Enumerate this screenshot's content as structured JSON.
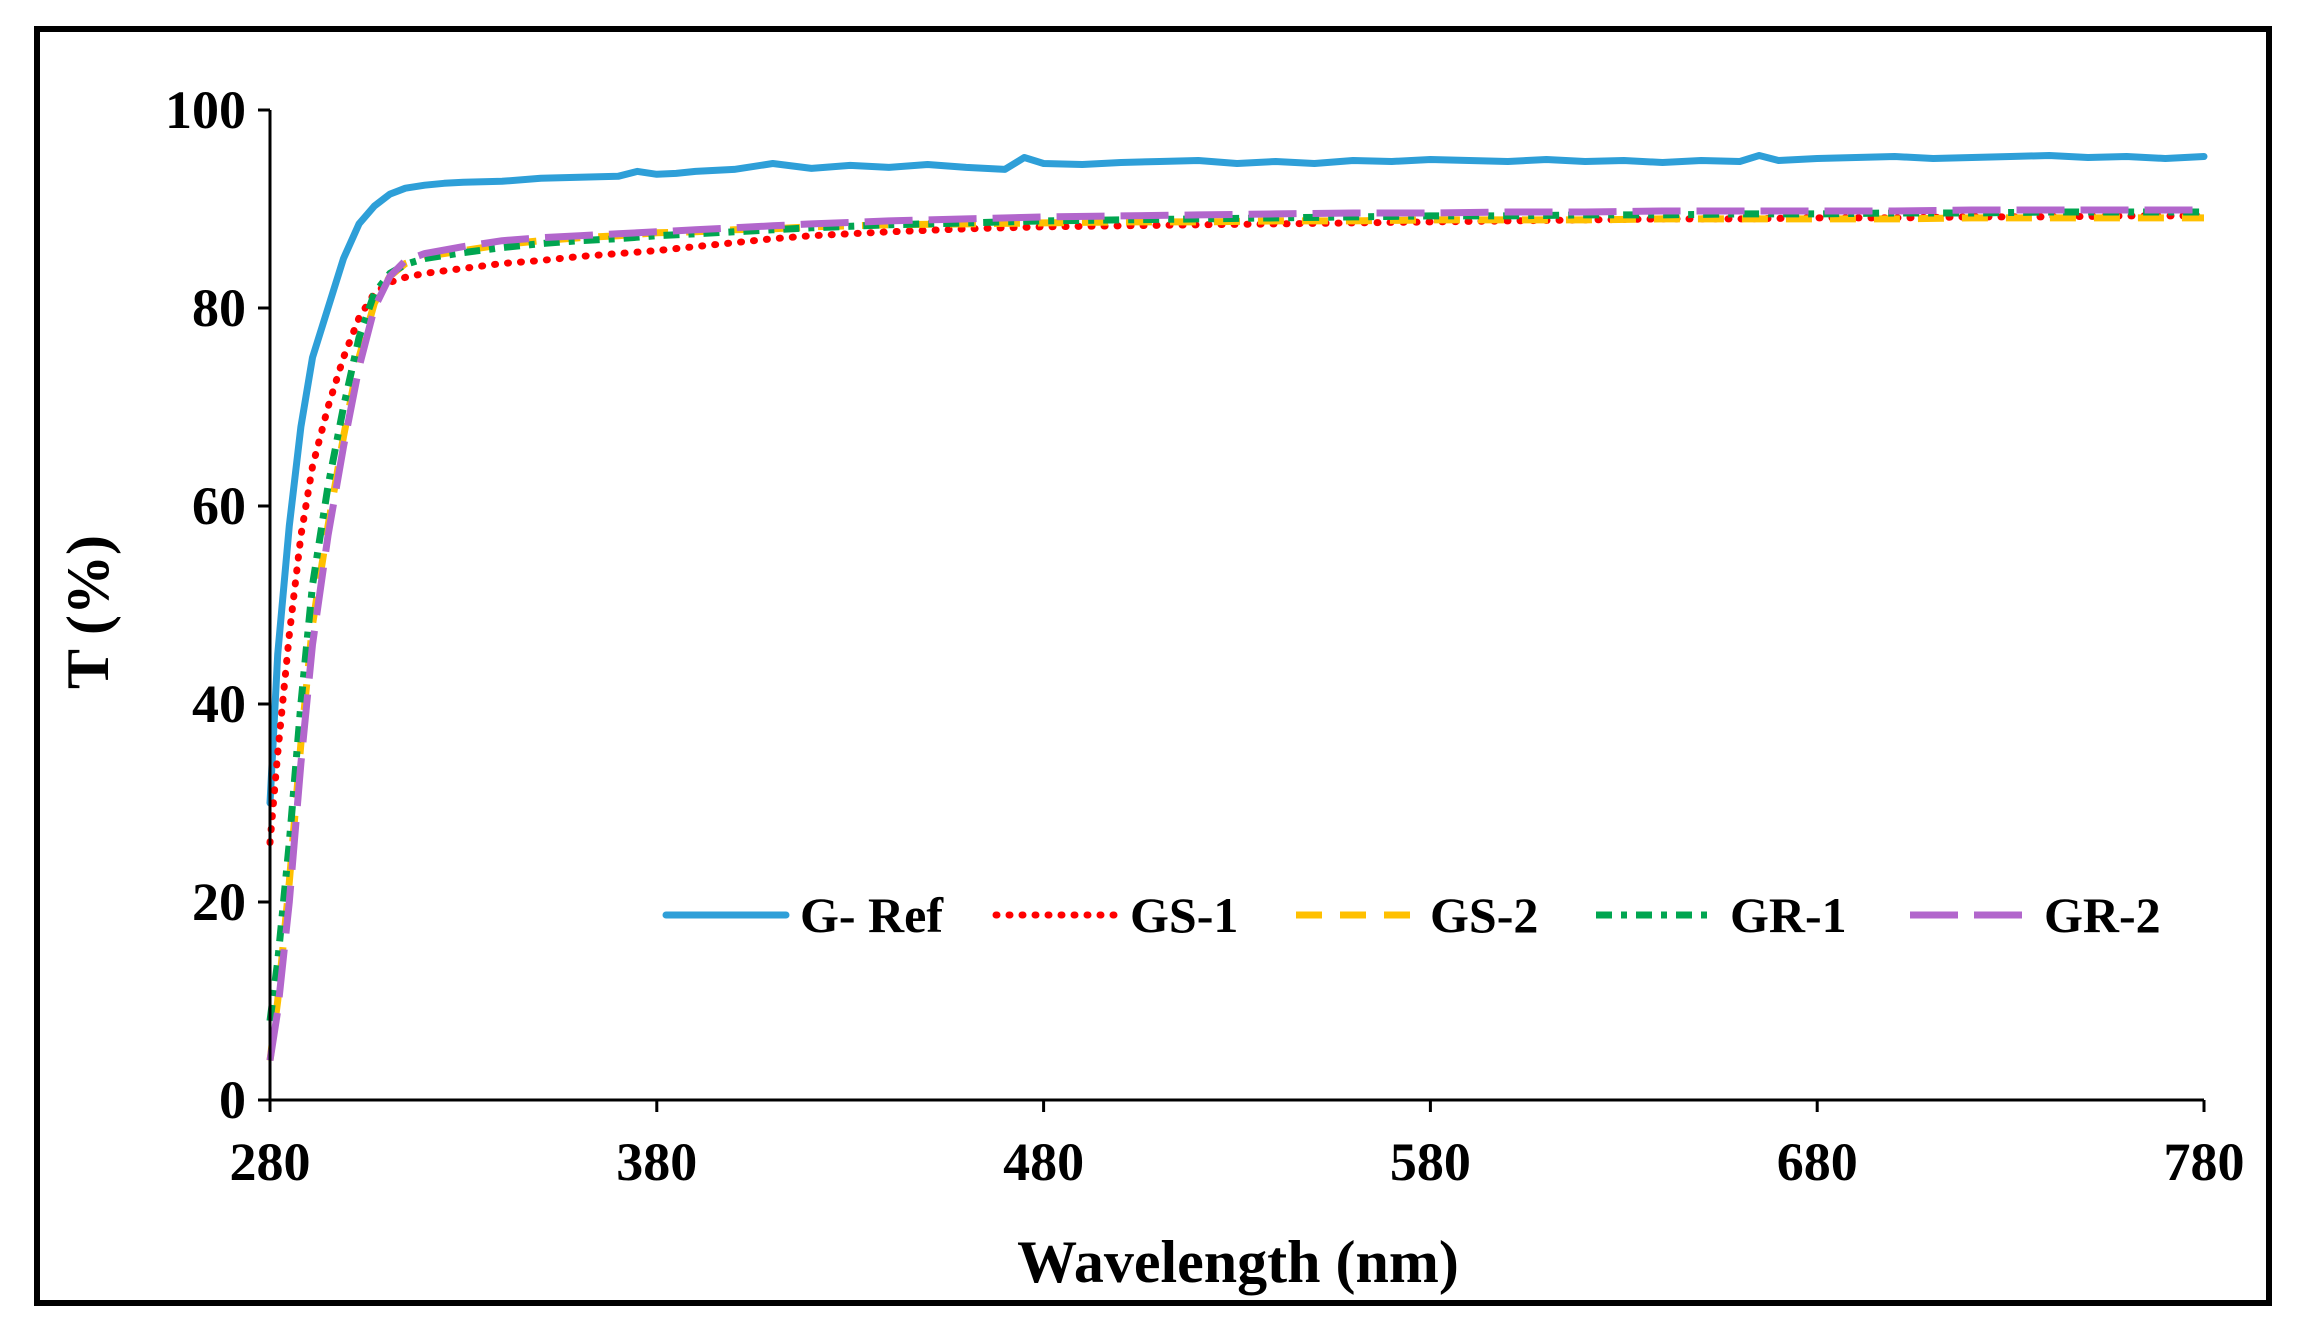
{
  "chart_data": {
    "type": "line",
    "title": "",
    "xlabel": "Wavelength (nm)",
    "ylabel": "T (%)",
    "xlim": [
      280,
      780
    ],
    "ylim": [
      0,
      100
    ],
    "xticks": [
      280,
      380,
      480,
      580,
      680,
      780
    ],
    "yticks": [
      0,
      20,
      40,
      60,
      80,
      100
    ],
    "grid": false,
    "legend_position": "bottom-right",
    "series": [
      {
        "name": "G- Ref",
        "color": "#2E9FD8",
        "style": "solid",
        "x": [
          280,
          282,
          285,
          288,
          291,
          295,
          299,
          303,
          307,
          311,
          315,
          320,
          325,
          330,
          340,
          350,
          360,
          370,
          375,
          380,
          385,
          390,
          400,
          410,
          420,
          430,
          440,
          450,
          460,
          470,
          475,
          480,
          490,
          500,
          510,
          520,
          530,
          540,
          550,
          560,
          570,
          580,
          590,
          600,
          610,
          620,
          630,
          640,
          650,
          660,
          665,
          670,
          680,
          690,
          700,
          710,
          720,
          730,
          740,
          750,
          760,
          770,
          780
        ],
        "values": [
          30,
          45,
          58,
          68,
          75,
          80,
          85,
          88.5,
          90.3,
          91.5,
          92.1,
          92.4,
          92.6,
          92.7,
          92.8,
          93.1,
          93.2,
          93.3,
          93.8,
          93.5,
          93.6,
          93.8,
          94.0,
          94.6,
          94.1,
          94.4,
          94.2,
          94.5,
          94.2,
          94.0,
          95.2,
          94.6,
          94.5,
          94.7,
          94.8,
          94.9,
          94.6,
          94.8,
          94.6,
          94.9,
          94.8,
          95.0,
          94.9,
          94.8,
          95.0,
          94.8,
          94.9,
          94.7,
          94.9,
          94.8,
          95.4,
          94.9,
          95.1,
          95.2,
          95.3,
          95.1,
          95.2,
          95.3,
          95.4,
          95.2,
          95.3,
          95.1,
          95.3
        ]
      },
      {
        "name": "GS-1",
        "color": "#FF0000",
        "style": "dotted",
        "x": [
          280,
          282,
          285,
          288,
          291,
          295,
          299,
          303,
          307,
          311,
          315,
          320,
          330,
          340,
          350,
          360,
          370,
          380,
          390,
          400,
          410,
          420,
          440,
          460,
          480,
          500,
          520,
          540,
          560,
          580,
          600,
          620,
          640,
          660,
          680,
          700,
          720,
          740,
          760,
          780
        ],
        "values": [
          26,
          35,
          47,
          57,
          64,
          70,
          75,
          79,
          81.5,
          82.6,
          83.1,
          83.5,
          84.0,
          84.5,
          84.8,
          85.2,
          85.5,
          85.8,
          86.2,
          86.6,
          87.0,
          87.3,
          87.7,
          88.0,
          88.2,
          88.3,
          88.4,
          88.5,
          88.6,
          88.7,
          88.8,
          88.9,
          89.0,
          89.0,
          89.1,
          89.1,
          89.2,
          89.2,
          89.3,
          89.3
        ]
      },
      {
        "name": "GS-2",
        "color": "#FFC000",
        "style": "dashed",
        "x": [
          280,
          282,
          285,
          288,
          291,
          295,
          299,
          303,
          307,
          311,
          315,
          320,
          330,
          340,
          350,
          360,
          370,
          380,
          390,
          400,
          410,
          420,
          440,
          460,
          480,
          500,
          520,
          540,
          560,
          580,
          600,
          620,
          640,
          660,
          680,
          700,
          720,
          740,
          760,
          780
        ],
        "values": [
          4,
          10,
          22,
          36,
          48,
          58,
          67,
          75,
          80.5,
          83.2,
          84.5,
          85.2,
          85.8,
          86.4,
          86.8,
          87.1,
          87.3,
          87.6,
          87.7,
          87.9,
          88.0,
          88.2,
          88.4,
          88.5,
          88.6,
          88.7,
          88.7,
          88.8,
          88.8,
          88.9,
          88.9,
          88.9,
          89.0,
          89.0,
          89.0,
          89.0,
          89.1,
          89.1,
          89.1,
          89.1
        ]
      },
      {
        "name": "GR-1",
        "color": "#00A550",
        "style": "dash-dot",
        "x": [
          280,
          282,
          285,
          288,
          291,
          295,
          299,
          303,
          307,
          311,
          315,
          320,
          330,
          340,
          350,
          360,
          370,
          380,
          390,
          400,
          410,
          420,
          440,
          460,
          480,
          500,
          520,
          540,
          560,
          580,
          600,
          620,
          640,
          660,
          680,
          700,
          720,
          740,
          760,
          780
        ],
        "values": [
          8,
          14,
          26,
          40,
          52,
          62,
          70,
          77,
          81.5,
          83.5,
          84.4,
          85.0,
          85.6,
          86.1,
          86.5,
          86.8,
          87.0,
          87.3,
          87.5,
          87.7,
          87.9,
          88.1,
          88.4,
          88.6,
          88.8,
          88.9,
          89.0,
          89.1,
          89.2,
          89.3,
          89.3,
          89.4,
          89.4,
          89.5,
          89.5,
          89.6,
          89.6,
          89.7,
          89.7,
          89.7
        ]
      },
      {
        "name": "GR-2",
        "color": "#B266CC",
        "style": "long-dash",
        "x": [
          280,
          282,
          285,
          288,
          291,
          295,
          299,
          303,
          307,
          311,
          315,
          320,
          330,
          340,
          350,
          360,
          370,
          380,
          390,
          400,
          410,
          420,
          440,
          460,
          480,
          500,
          520,
          540,
          560,
          580,
          600,
          620,
          640,
          660,
          680,
          700,
          720,
          740,
          760,
          780
        ],
        "values": [
          4,
          9,
          20,
          34,
          46,
          57,
          66,
          74,
          80,
          83.2,
          84.8,
          85.5,
          86.2,
          86.8,
          87.1,
          87.3,
          87.5,
          87.7,
          87.9,
          88.1,
          88.3,
          88.5,
          88.8,
          89.0,
          89.2,
          89.3,
          89.4,
          89.5,
          89.6,
          89.6,
          89.7,
          89.7,
          89.8,
          89.8,
          89.8,
          89.8,
          89.9,
          89.9,
          89.9,
          89.9
        ]
      }
    ]
  }
}
